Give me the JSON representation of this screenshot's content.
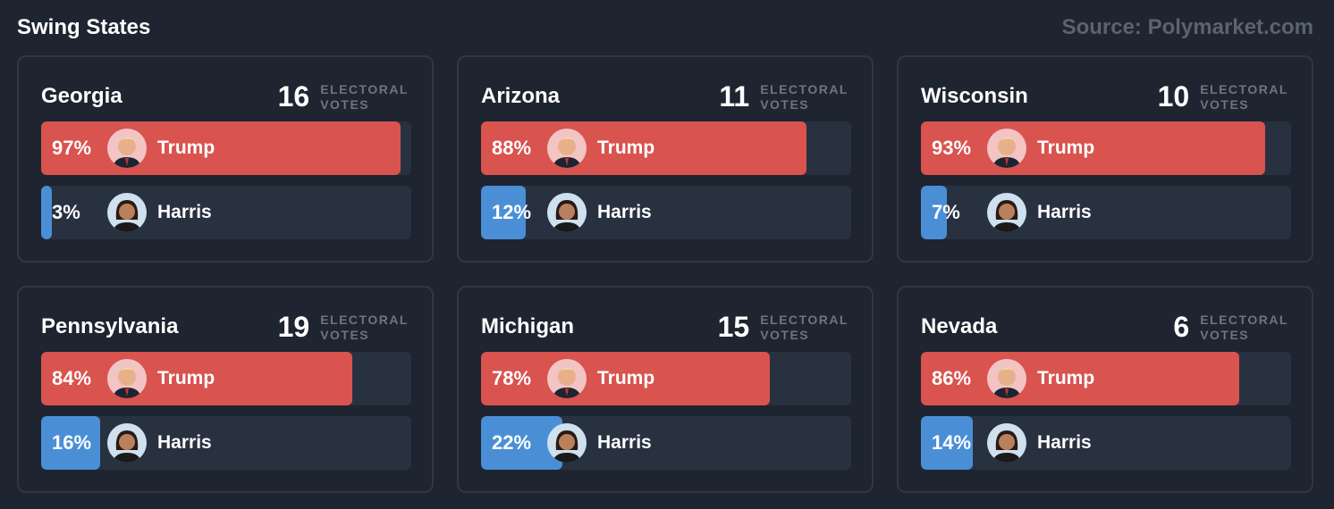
{
  "header": {
    "title": "Swing States",
    "source": "Source: Polymarket.com"
  },
  "ev_label_1": "ELECTORAL",
  "ev_label_2": "VOTES",
  "colors": {
    "trump": "#d9534f",
    "harris": "#4a8fd6"
  },
  "states": [
    {
      "name": "Georgia",
      "ev": "16",
      "trump_pct": "97%",
      "trump_val": 97,
      "harris_pct": "3%",
      "harris_val": 3
    },
    {
      "name": "Arizona",
      "ev": "11",
      "trump_pct": "88%",
      "trump_val": 88,
      "harris_pct": "12%",
      "harris_val": 12
    },
    {
      "name": "Wisconsin",
      "ev": "10",
      "trump_pct": "93%",
      "trump_val": 93,
      "harris_pct": "7%",
      "harris_val": 7
    },
    {
      "name": "Pennsylvania",
      "ev": "19",
      "trump_pct": "84%",
      "trump_val": 84,
      "harris_pct": "16%",
      "harris_val": 16
    },
    {
      "name": "Michigan",
      "ev": "15",
      "trump_pct": "78%",
      "trump_val": 78,
      "harris_pct": "22%",
      "harris_val": 22
    },
    {
      "name": "Nevada",
      "ev": "6",
      "trump_pct": "86%",
      "trump_val": 86,
      "harris_pct": "14%",
      "harris_val": 14
    }
  ],
  "candidates": {
    "trump": "Trump",
    "harris": "Harris"
  }
}
